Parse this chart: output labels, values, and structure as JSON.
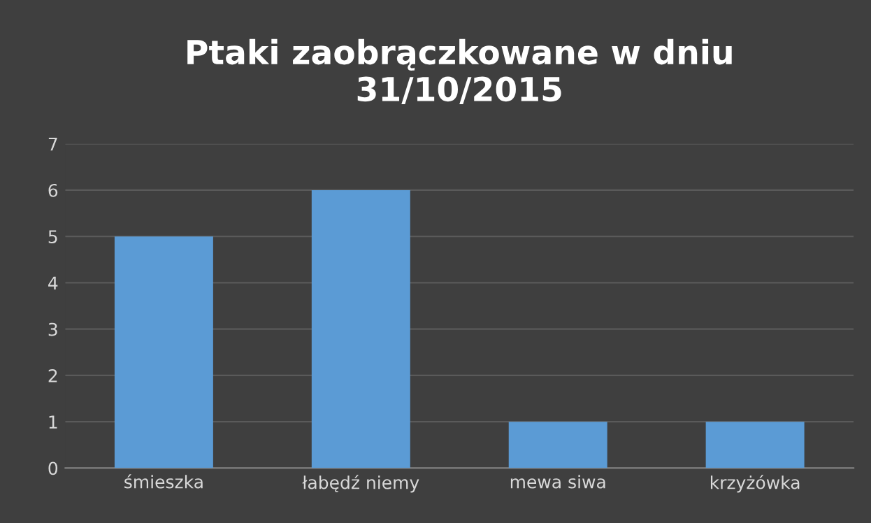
{
  "chart_data": {
    "type": "bar",
    "title": "Ptaki zaobrączkowane w dniu\n31/10/2015",
    "categories": [
      "śmieszka",
      "łabędź niemy",
      "mewa siwa",
      "krzyżówka"
    ],
    "values": [
      5,
      6,
      1,
      1
    ],
    "color": "#5b9bd5",
    "ylim": [
      0,
      7
    ],
    "yticks": [
      0,
      1,
      2,
      3,
      4,
      5,
      6,
      7
    ],
    "grid": "y",
    "legend": false
  }
}
